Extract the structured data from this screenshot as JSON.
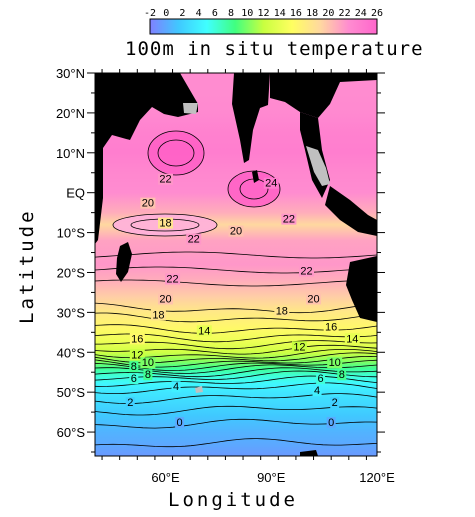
{
  "chart_data": {
    "type": "heatmap",
    "title": "100m in situ temperature",
    "xlabel": "Longitude",
    "ylabel": "Latitude",
    "x_ticks": [
      "60°E",
      "90°E",
      "120°E"
    ],
    "x_tick_values": [
      60,
      90,
      120
    ],
    "y_ticks": [
      "30°N",
      "20°N",
      "10°N",
      "EQ",
      "10°S",
      "20°S",
      "30°S",
      "40°S",
      "50°S",
      "60°S"
    ],
    "y_tick_values": [
      30,
      20,
      10,
      0,
      -10,
      -20,
      -30,
      -40,
      -50,
      -60
    ],
    "xlim": [
      40,
      120
    ],
    "ylim": [
      -66,
      30
    ],
    "colorbar": {
      "ticks": [
        "-2",
        "0",
        "2",
        "4",
        "6",
        "8",
        "10",
        "12",
        "14",
        "16",
        "18",
        "20",
        "22",
        "24",
        "26"
      ],
      "tick_values": [
        -2,
        0,
        2,
        4,
        6,
        8,
        10,
        12,
        14,
        16,
        18,
        20,
        22,
        24,
        26
      ],
      "range": [
        -2,
        26
      ],
      "colors": [
        "#8080ff",
        "#40c8ff",
        "#40ffff",
        "#40ff80",
        "#c8ff40",
        "#ffff60",
        "#ffd8a0",
        "#ff8cd0",
        "#ff66cc"
      ]
    },
    "land_color": "#000000",
    "missing_color": "#c0c0c0",
    "temperature_profile": [
      {
        "lat": 25,
        "value": 22.5
      },
      {
        "lat": 20,
        "value": 22.8
      },
      {
        "lat": 15,
        "value": 23.5
      },
      {
        "lat": 10,
        "value": 23.8
      },
      {
        "lat": 5,
        "value": 23.0
      },
      {
        "lat": 0,
        "value": 22.5
      },
      {
        "lat": -5,
        "value": 21.0
      },
      {
        "lat": -8,
        "value": 19.0
      },
      {
        "lat": -12,
        "value": 21.5
      },
      {
        "lat": -18,
        "value": 22.0
      },
      {
        "lat": -22,
        "value": 21.0
      },
      {
        "lat": -26,
        "value": 19.5
      },
      {
        "lat": -30,
        "value": 17.5
      },
      {
        "lat": -34,
        "value": 16.0
      },
      {
        "lat": -37,
        "value": 14.5
      },
      {
        "lat": -40,
        "value": 12.5
      },
      {
        "lat": -42,
        "value": 10.5
      },
      {
        "lat": -44,
        "value": 8.0
      },
      {
        "lat": -46,
        "value": 6.0
      },
      {
        "lat": -48,
        "value": 4.5
      },
      {
        "lat": -50,
        "value": 3.5
      },
      {
        "lat": -53,
        "value": 2.5
      },
      {
        "lat": -56,
        "value": 1.5
      },
      {
        "lat": -60,
        "value": 0.5
      },
      {
        "lat": -63,
        "value": 0.0
      },
      {
        "lat": -66,
        "value": -0.8
      }
    ],
    "contour_labels": [
      {
        "text": "22",
        "lon": 62,
        "lat": 25
      },
      {
        "text": "24",
        "lon": 90,
        "lat": 2
      },
      {
        "text": "22",
        "lon": 60,
        "lat": 3
      },
      {
        "text": "20",
        "lon": 55,
        "lat": -3
      },
      {
        "text": "18",
        "lon": 60,
        "lat": -8
      },
      {
        "text": "22",
        "lon": 68,
        "lat": -12
      },
      {
        "text": "20",
        "lon": 80,
        "lat": -10
      },
      {
        "text": "22",
        "lon": 95,
        "lat": -7
      },
      {
        "text": "22",
        "lon": 62,
        "lat": -22
      },
      {
        "text": "22",
        "lon": 100,
        "lat": -20
      },
      {
        "text": "20",
        "lon": 60,
        "lat": -27
      },
      {
        "text": "20",
        "lon": 102,
        "lat": -27
      },
      {
        "text": "18",
        "lon": 58,
        "lat": -31
      },
      {
        "text": "18",
        "lon": 93,
        "lat": -30
      },
      {
        "text": "16",
        "lon": 107,
        "lat": -34
      },
      {
        "text": "16",
        "lon": 52,
        "lat": -37
      },
      {
        "text": "14",
        "lon": 71,
        "lat": -35
      },
      {
        "text": "14",
        "lon": 113,
        "lat": -37
      },
      {
        "text": "12",
        "lon": 52,
        "lat": -41
      },
      {
        "text": "12",
        "lon": 98,
        "lat": -39
      },
      {
        "text": "10",
        "lon": 55,
        "lat": -43
      },
      {
        "text": "10",
        "lon": 108,
        "lat": -43
      },
      {
        "text": "8",
        "lon": 51,
        "lat": -44
      },
      {
        "text": "8",
        "lon": 55,
        "lat": -46
      },
      {
        "text": "8",
        "lon": 110,
        "lat": -46
      },
      {
        "text": "6",
        "lon": 51,
        "lat": -47
      },
      {
        "text": "6",
        "lon": 104,
        "lat": -47
      },
      {
        "text": "4",
        "lon": 63,
        "lat": -49
      },
      {
        "text": "4",
        "lon": 103,
        "lat": -50
      },
      {
        "text": "2",
        "lon": 50,
        "lat": -53
      },
      {
        "text": "2",
        "lon": 108,
        "lat": -53
      },
      {
        "text": "0",
        "lon": 64,
        "lat": -58
      },
      {
        "text": "0",
        "lon": 107,
        "lat": -58
      }
    ],
    "grid": false
  }
}
